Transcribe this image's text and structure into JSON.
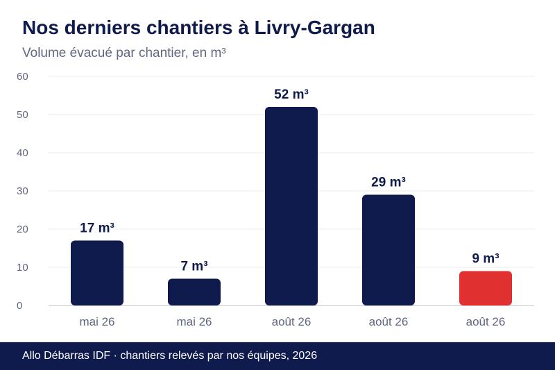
{
  "colors": {
    "primary": "#0f1a4d",
    "highlight": "#e03030",
    "grid": "#ebebeb",
    "axis": "#c8c8d4",
    "muted": "#5f6680"
  },
  "footer": {
    "text": "Allo Débarras IDF · chantiers relevés par nos équipes, 2026"
  },
  "chart_data": {
    "type": "bar",
    "title": "Nos derniers chantiers à Livry-Gargan",
    "subtitle": "Volume évacué par chantier, en m³",
    "xlabel": "",
    "ylabel": "",
    "categories": [
      "mai 26",
      "mai 26",
      "août 26",
      "août 26",
      "août 26"
    ],
    "values": [
      17,
      7,
      52,
      29,
      9
    ],
    "data_labels": [
      "17 m³",
      "7 m³",
      "52 m³",
      "29 m³",
      "9 m³"
    ],
    "highlight_index": 4,
    "ylim": [
      0,
      60
    ],
    "yticks": [
      0,
      10,
      20,
      30,
      40,
      50,
      60
    ],
    "grid": true,
    "legend": "none"
  }
}
